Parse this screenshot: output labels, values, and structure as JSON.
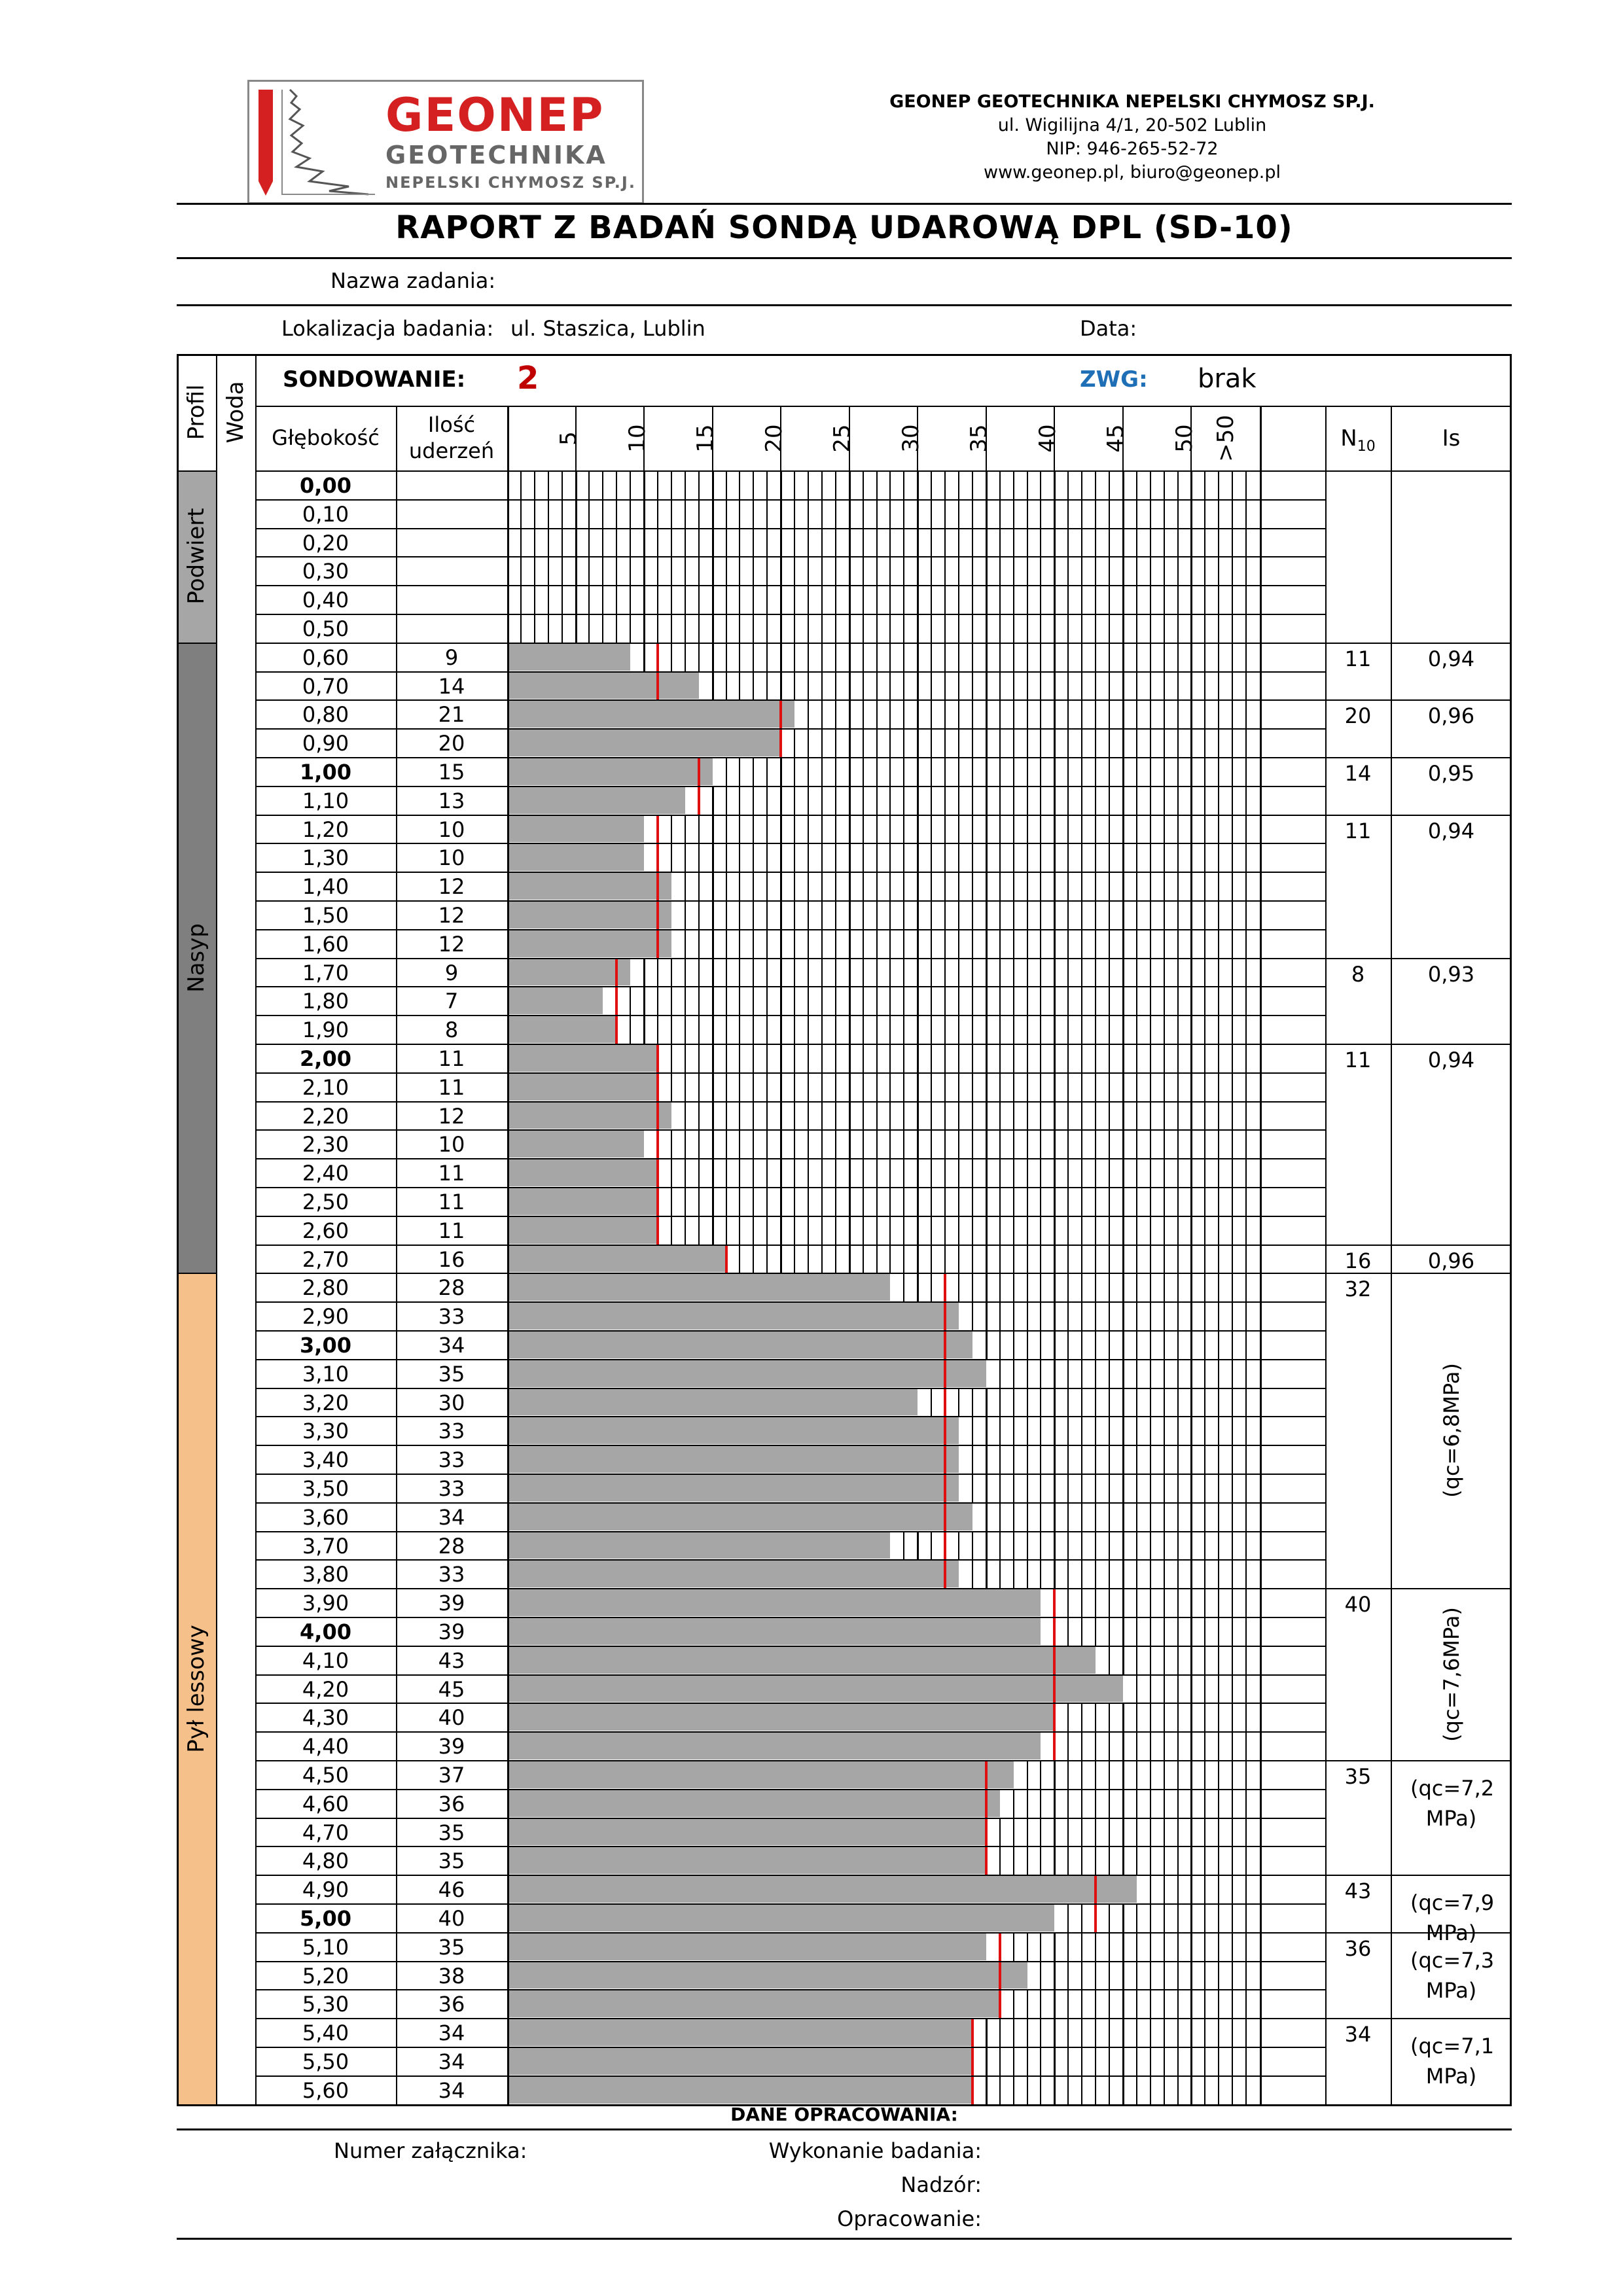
{
  "logo": {
    "brand": "GEONEP",
    "brand_line2": "GEOTECHNIKA",
    "brand_line3": "NEPELSKI CHYMOSZ SP.J."
  },
  "company": {
    "name": "GEONEP GEOTECHNIKA NEPELSKI CHYMOSZ SP.J.",
    "address": "ul. Wigilijna 4/1, 20-502 Lublin",
    "nip": "NIP: 946-265-52-72",
    "web": "www.geonep.pl,  biuro@geonep.pl"
  },
  "report": {
    "title": "RAPORT Z BADAŃ SONDĄ UDAROWĄ DPL (SD-10)",
    "task_label": "Nazwa zadania:",
    "task_value": "",
    "location_label": "Lokalizacja badania:",
    "location_value": "ul. Staszica, Lublin",
    "date_label": "Data:",
    "date_value": "",
    "sounding_label": "SONDOWANIE:",
    "sounding_number": "2",
    "zwg_label": "ZWG:",
    "zwg_value": "brak"
  },
  "headers": {
    "profil": "Profil",
    "woda": "Woda",
    "depth": "Głębokość",
    "blows_line1": "Ilość",
    "blows_line2": "uderzeń",
    "scale": [
      "5",
      "10",
      "15",
      "20",
      "25",
      "30",
      "35",
      "40",
      "45",
      "50",
      ">50"
    ],
    "n10": "N",
    "n10_sub": "10",
    "is": "Is"
  },
  "profile": [
    {
      "name": "Podwiert",
      "from_row": 0,
      "to_row": 6,
      "color": "#a6a6a6"
    },
    {
      "name": "Nasyp",
      "from_row": 6,
      "to_row": 28,
      "color": "#7f7f7f"
    },
    {
      "name": "Pył lessowy",
      "from_row": 28,
      "to_row": 57,
      "color": "#f5c08a"
    }
  ],
  "rows": [
    {
      "depth": "0,00",
      "bold": true,
      "blows": ""
    },
    {
      "depth": "0,10",
      "bold": false,
      "blows": ""
    },
    {
      "depth": "0,20",
      "bold": false,
      "blows": ""
    },
    {
      "depth": "0,30",
      "bold": false,
      "blows": ""
    },
    {
      "depth": "0,40",
      "bold": false,
      "blows": ""
    },
    {
      "depth": "0,50",
      "bold": false,
      "blows": ""
    },
    {
      "depth": "0,60",
      "bold": false,
      "blows": "9"
    },
    {
      "depth": "0,70",
      "bold": false,
      "blows": "14"
    },
    {
      "depth": "0,80",
      "bold": false,
      "blows": "21"
    },
    {
      "depth": "0,90",
      "bold": false,
      "blows": "20"
    },
    {
      "depth": "1,00",
      "bold": true,
      "blows": "15"
    },
    {
      "depth": "1,10",
      "bold": false,
      "blows": "13"
    },
    {
      "depth": "1,20",
      "bold": false,
      "blows": "10"
    },
    {
      "depth": "1,30",
      "bold": false,
      "blows": "10"
    },
    {
      "depth": "1,40",
      "bold": false,
      "blows": "12"
    },
    {
      "depth": "1,50",
      "bold": false,
      "blows": "12"
    },
    {
      "depth": "1,60",
      "bold": false,
      "blows": "12"
    },
    {
      "depth": "1,70",
      "bold": false,
      "blows": "9"
    },
    {
      "depth": "1,80",
      "bold": false,
      "blows": "7"
    },
    {
      "depth": "1,90",
      "bold": false,
      "blows": "8"
    },
    {
      "depth": "2,00",
      "bold": true,
      "blows": "11"
    },
    {
      "depth": "2,10",
      "bold": false,
      "blows": "11"
    },
    {
      "depth": "2,20",
      "bold": false,
      "blows": "12"
    },
    {
      "depth": "2,30",
      "bold": false,
      "blows": "10"
    },
    {
      "depth": "2,40",
      "bold": false,
      "blows": "11"
    },
    {
      "depth": "2,50",
      "bold": false,
      "blows": "11"
    },
    {
      "depth": "2,60",
      "bold": false,
      "blows": "11"
    },
    {
      "depth": "2,70",
      "bold": false,
      "blows": "16"
    },
    {
      "depth": "2,80",
      "bold": false,
      "blows": "28"
    },
    {
      "depth": "2,90",
      "bold": false,
      "blows": "33"
    },
    {
      "depth": "3,00",
      "bold": true,
      "blows": "34"
    },
    {
      "depth": "3,10",
      "bold": false,
      "blows": "35"
    },
    {
      "depth": "3,20",
      "bold": false,
      "blows": "30"
    },
    {
      "depth": "3,30",
      "bold": false,
      "blows": "33"
    },
    {
      "depth": "3,40",
      "bold": false,
      "blows": "33"
    },
    {
      "depth": "3,50",
      "bold": false,
      "blows": "33"
    },
    {
      "depth": "3,60",
      "bold": false,
      "blows": "34"
    },
    {
      "depth": "3,70",
      "bold": false,
      "blows": "28"
    },
    {
      "depth": "3,80",
      "bold": false,
      "blows": "33"
    },
    {
      "depth": "3,90",
      "bold": false,
      "blows": "39"
    },
    {
      "depth": "4,00",
      "bold": true,
      "blows": "39"
    },
    {
      "depth": "4,10",
      "bold": false,
      "blows": "43"
    },
    {
      "depth": "4,20",
      "bold": false,
      "blows": "45"
    },
    {
      "depth": "4,30",
      "bold": false,
      "blows": "40"
    },
    {
      "depth": "4,40",
      "bold": false,
      "blows": "39"
    },
    {
      "depth": "4,50",
      "bold": false,
      "blows": "37"
    },
    {
      "depth": "4,60",
      "bold": false,
      "blows": "36"
    },
    {
      "depth": "4,70",
      "bold": false,
      "blows": "35"
    },
    {
      "depth": "4,80",
      "bold": false,
      "blows": "35"
    },
    {
      "depth": "4,90",
      "bold": false,
      "blows": "46"
    },
    {
      "depth": "5,00",
      "bold": true,
      "blows": "40"
    },
    {
      "depth": "5,10",
      "bold": false,
      "blows": "35"
    },
    {
      "depth": "5,20",
      "bold": false,
      "blows": "38"
    },
    {
      "depth": "5,30",
      "bold": false,
      "blows": "36"
    },
    {
      "depth": "5,40",
      "bold": false,
      "blows": "34"
    },
    {
      "depth": "5,50",
      "bold": false,
      "blows": "34"
    },
    {
      "depth": "5,60",
      "bold": false,
      "blows": "34"
    }
  ],
  "groups": [
    {
      "from_row": 6,
      "to_row": 8,
      "n10": "11",
      "is": "0,94",
      "is_vertical": false
    },
    {
      "from_row": 8,
      "to_row": 10,
      "n10": "20",
      "is": "0,96",
      "is_vertical": false
    },
    {
      "from_row": 10,
      "to_row": 12,
      "n10": "14",
      "is": "0,95",
      "is_vertical": false
    },
    {
      "from_row": 12,
      "to_row": 17,
      "n10": "11",
      "is": "0,94",
      "is_vertical": false
    },
    {
      "from_row": 17,
      "to_row": 20,
      "n10": "8",
      "is": "0,93",
      "is_vertical": false
    },
    {
      "from_row": 20,
      "to_row": 27,
      "n10": "11",
      "is": "0,94",
      "is_vertical": false
    },
    {
      "from_row": 27,
      "to_row": 28,
      "n10": "16",
      "is": "0,96",
      "is_vertical": false
    },
    {
      "from_row": 28,
      "to_row": 39,
      "n10": "32",
      "is": "(qc=6,8MPa)",
      "is_vertical": true
    },
    {
      "from_row": 39,
      "to_row": 45,
      "n10": "40",
      "is": "(qc=7,6MPa)",
      "is_vertical": true
    },
    {
      "from_row": 45,
      "to_row": 49,
      "n10": "35",
      "is": "(qc=7,2 MPa)",
      "is_vertical": false
    },
    {
      "from_row": 49,
      "to_row": 51,
      "n10": "43",
      "is": "(qc=7,9 MPa)",
      "is_vertical": false
    },
    {
      "from_row": 51,
      "to_row": 54,
      "n10": "36",
      "is": "(qc=7,3 MPa)",
      "is_vertical": false
    },
    {
      "from_row": 54,
      "to_row": 57,
      "n10": "34",
      "is": "(qc=7,1 MPa)",
      "is_vertical": false
    }
  ],
  "footer": {
    "section": "DANE OPRACOWANIA:",
    "attachment": "Numer załącznika:",
    "execution": "Wykonanie badania:",
    "supervision": "Nadzór:",
    "elaboration": "Opracowanie:"
  },
  "colors": {
    "bar": "#a6a6a6",
    "red_line": "#e01010",
    "brand_red": "#d42020",
    "zwg_blue": "#1e6fb5",
    "sounding_red": "#c00000"
  }
}
